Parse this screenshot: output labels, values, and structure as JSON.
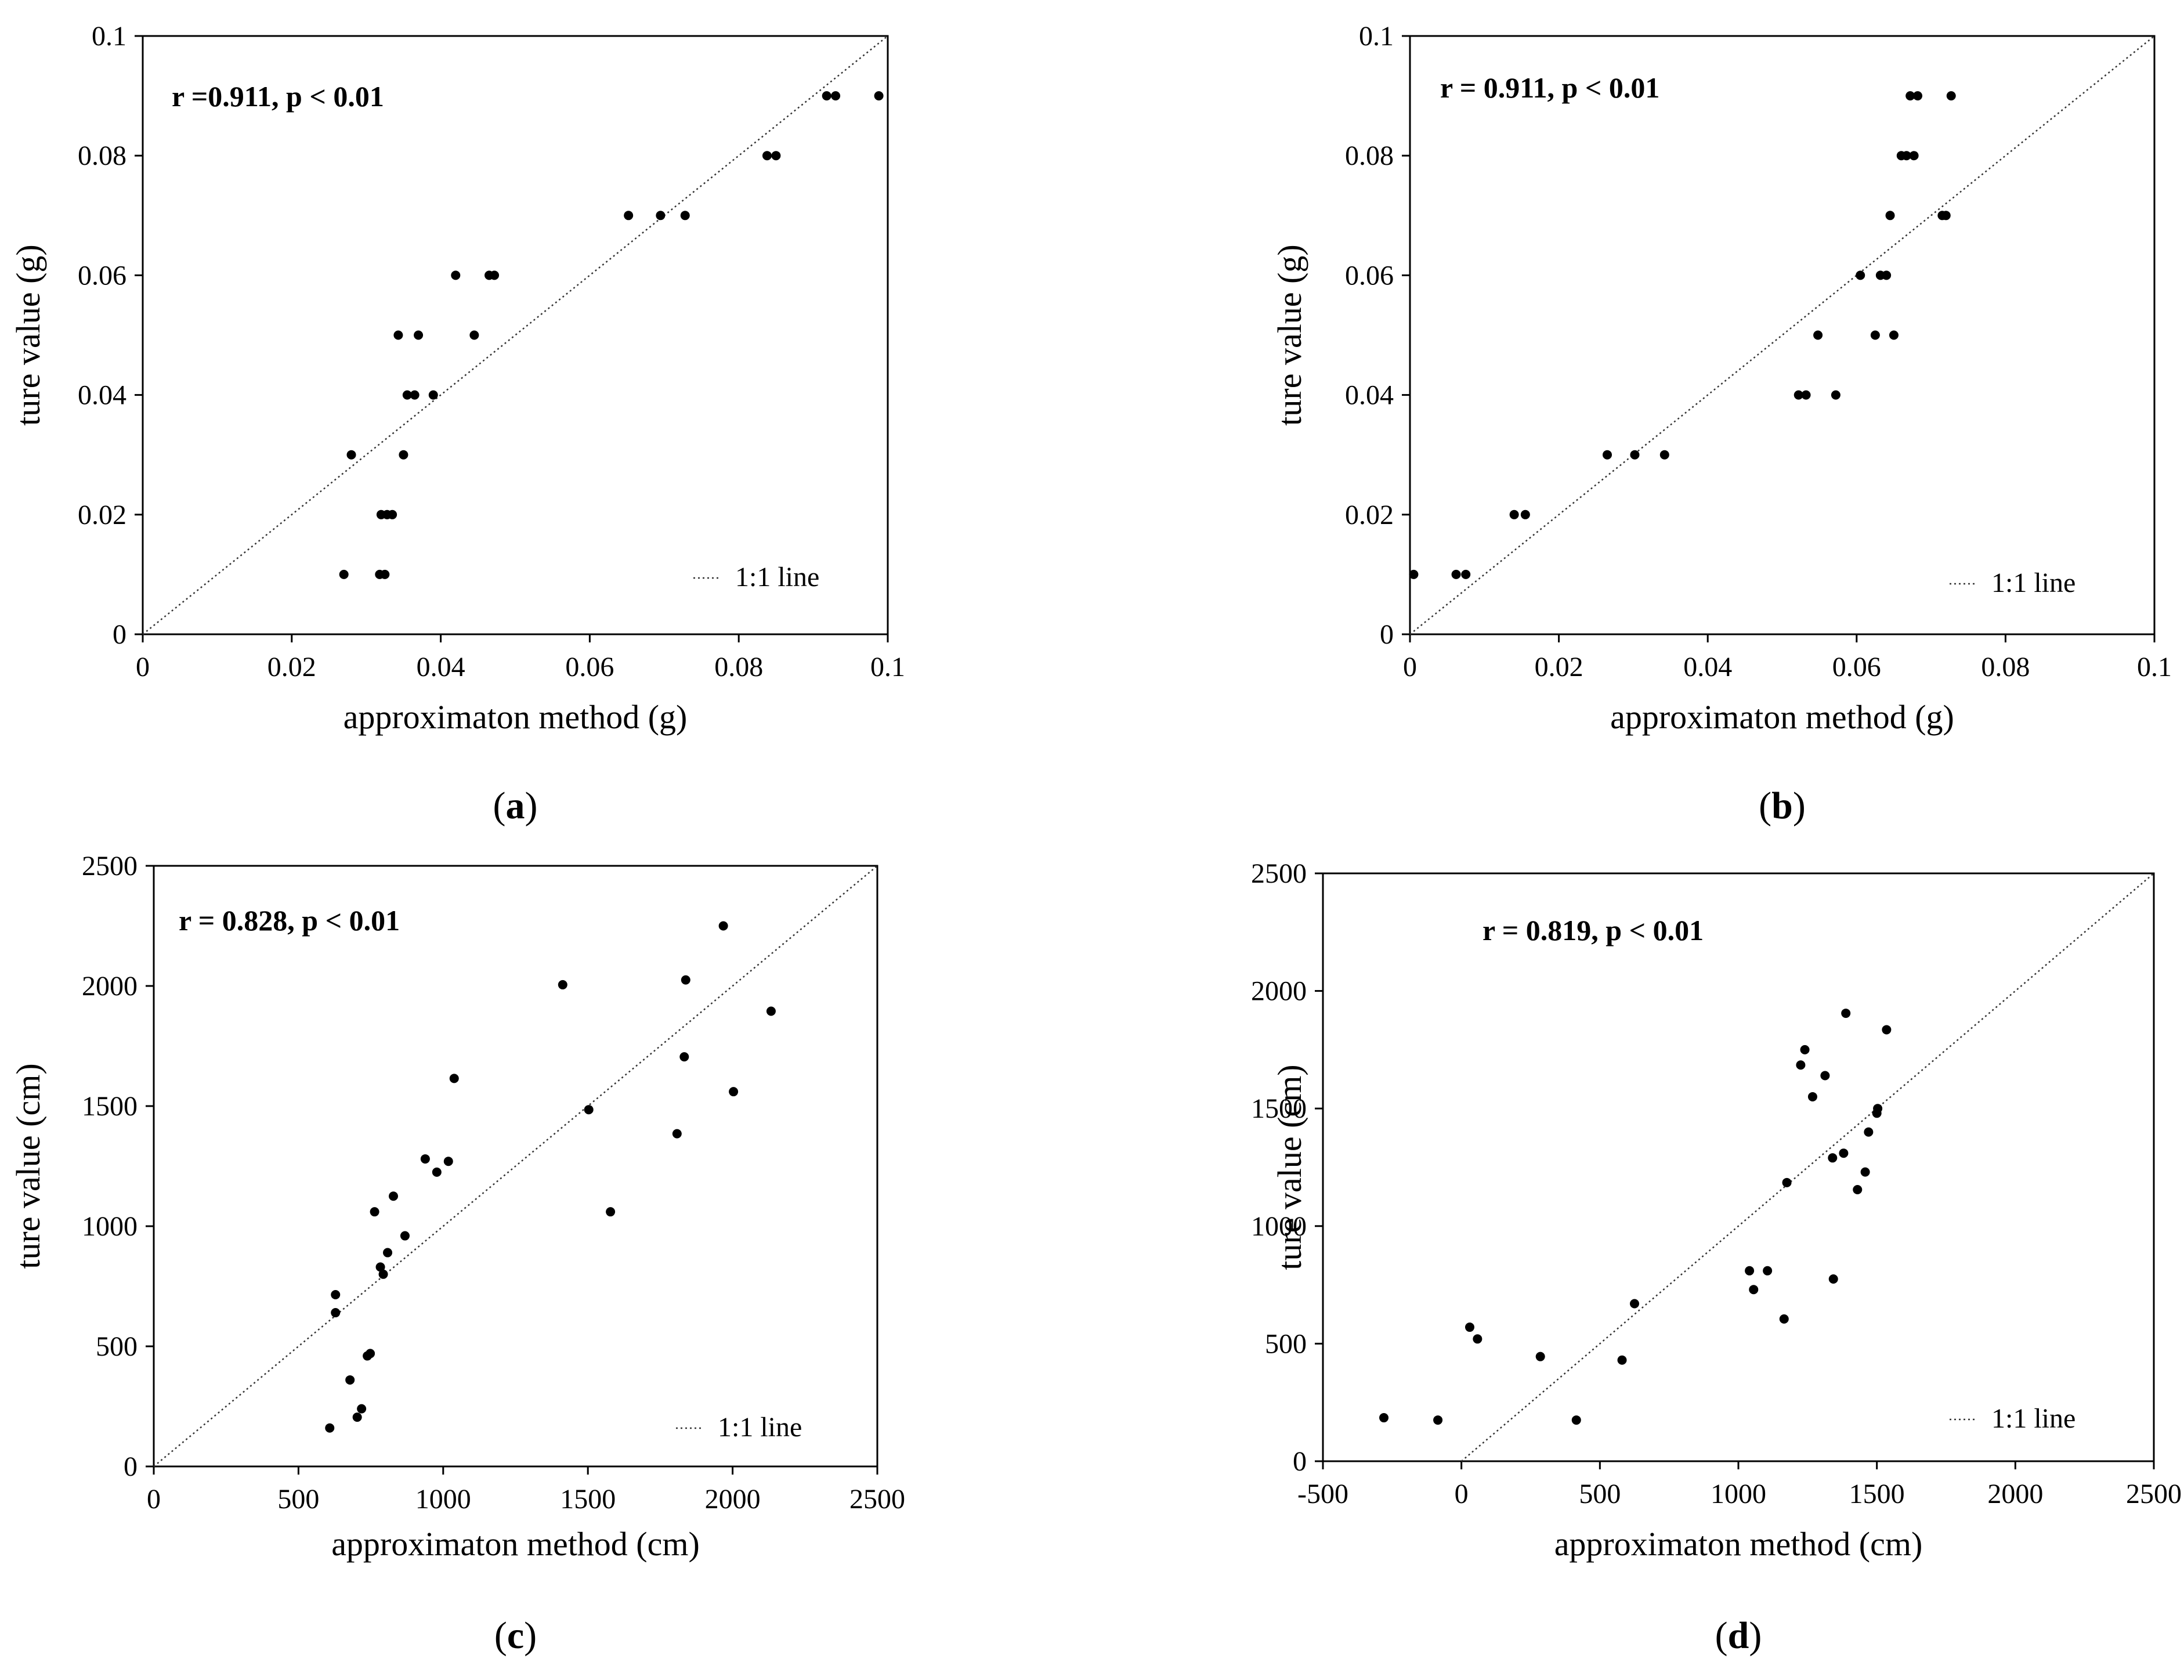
{
  "chart_data": [
    {
      "type": "scatter",
      "panel_label": "a",
      "annotation": "r =0.911, p < 0.01",
      "xlabel": "approximaton method (g)",
      "ylabel": "ture value (g)",
      "xlim": [
        0,
        0.1
      ],
      "ylim": [
        0,
        0.1
      ],
      "xticks": [
        "0",
        "0.02",
        "0.04",
        "0.06",
        "0.08",
        "0.1"
      ],
      "yticks": [
        "0",
        "0.02",
        "0.04",
        "0.06",
        "0.08",
        "0.1"
      ],
      "xtick_values": [
        0,
        0.02,
        0.04,
        0.06,
        0.08,
        0.1
      ],
      "ytick_values": [
        0,
        0.02,
        0.04,
        0.06,
        0.08,
        0.1
      ],
      "legend": "1:1 line",
      "legend_position": "bottom-right",
      "line": [
        [
          0,
          0
        ],
        [
          0.1,
          0.1
        ]
      ],
      "points": [
        [
          0.027,
          0.01
        ],
        [
          0.0318,
          0.01
        ],
        [
          0.0325,
          0.01
        ],
        [
          0.032,
          0.02
        ],
        [
          0.0328,
          0.02
        ],
        [
          0.0335,
          0.02
        ],
        [
          0.028,
          0.03
        ],
        [
          0.035,
          0.03
        ],
        [
          0.0355,
          0.04
        ],
        [
          0.0365,
          0.04
        ],
        [
          0.039,
          0.04
        ],
        [
          0.0343,
          0.05
        ],
        [
          0.037,
          0.05
        ],
        [
          0.0445,
          0.05
        ],
        [
          0.042,
          0.06
        ],
        [
          0.0465,
          0.06
        ],
        [
          0.0472,
          0.06
        ],
        [
          0.0652,
          0.07
        ],
        [
          0.0695,
          0.07
        ],
        [
          0.0728,
          0.07
        ],
        [
          0.0838,
          0.08
        ],
        [
          0.085,
          0.08
        ],
        [
          0.0918,
          0.09
        ],
        [
          0.093,
          0.09
        ],
        [
          0.0988,
          0.09
        ]
      ]
    },
    {
      "type": "scatter",
      "panel_label": "b",
      "annotation": "r = 0.911, p < 0.01",
      "xlabel": "approximaton method (g)",
      "ylabel": "ture value (g)",
      "xlim": [
        0,
        0.1
      ],
      "ylim": [
        0,
        0.1
      ],
      "xticks": [
        "0",
        "0.02",
        "0.04",
        "0.06",
        "0.08",
        "0.1"
      ],
      "yticks": [
        "0",
        "0.02",
        "0.04",
        "0.06",
        "0.08",
        "0.1"
      ],
      "xtick_values": [
        0,
        0.02,
        0.04,
        0.06,
        0.08,
        0.1
      ],
      "ytick_values": [
        0,
        0.02,
        0.04,
        0.06,
        0.08,
        0.1
      ],
      "legend": "1:1 line",
      "legend_position": "bottom-right",
      "line": [
        [
          0,
          0
        ],
        [
          0.1,
          0.1
        ]
      ],
      "points": [
        [
          0.0005,
          0.01
        ],
        [
          0.0062,
          0.01
        ],
        [
          0.0075,
          0.01
        ],
        [
          0.014,
          0.02
        ],
        [
          0.0155,
          0.02
        ],
        [
          0.0265,
          0.03
        ],
        [
          0.0302,
          0.03
        ],
        [
          0.0342,
          0.03
        ],
        [
          0.0522,
          0.04
        ],
        [
          0.0532,
          0.04
        ],
        [
          0.0572,
          0.04
        ],
        [
          0.0548,
          0.05
        ],
        [
          0.0625,
          0.05
        ],
        [
          0.065,
          0.05
        ],
        [
          0.0605,
          0.06
        ],
        [
          0.0632,
          0.06
        ],
        [
          0.064,
          0.06
        ],
        [
          0.0645,
          0.07
        ],
        [
          0.0715,
          0.07
        ],
        [
          0.072,
          0.07
        ],
        [
          0.066,
          0.08
        ],
        [
          0.0667,
          0.08
        ],
        [
          0.0677,
          0.08
        ],
        [
          0.0672,
          0.09
        ],
        [
          0.0682,
          0.09
        ],
        [
          0.0727,
          0.09
        ]
      ]
    },
    {
      "type": "scatter",
      "panel_label": "c",
      "annotation": "r = 0.828, p < 0.01",
      "xlabel": "approximaton method (cm)",
      "ylabel": "ture value (cm)",
      "xlim": [
        0,
        2500
      ],
      "ylim": [
        0,
        2500
      ],
      "xticks": [
        "0",
        "500",
        "1000",
        "1500",
        "2000",
        "2500"
      ],
      "yticks": [
        "0",
        "500",
        "1000",
        "1500",
        "2000",
        "2500"
      ],
      "xtick_values": [
        0,
        500,
        1000,
        1500,
        2000,
        2500
      ],
      "ytick_values": [
        0,
        500,
        1000,
        1500,
        2000,
        2500
      ],
      "legend": "1:1 line",
      "legend_position": "bottom-right",
      "line": [
        [
          0,
          0
        ],
        [
          2500,
          2500
        ]
      ],
      "points": [
        [
          608,
          160
        ],
        [
          703,
          205
        ],
        [
          718,
          240
        ],
        [
          678,
          360
        ],
        [
          738,
          460
        ],
        [
          748,
          470
        ],
        [
          628,
          640
        ],
        [
          628,
          715
        ],
        [
          783,
          830
        ],
        [
          793,
          800
        ],
        [
          808,
          890
        ],
        [
          868,
          960
        ],
        [
          763,
          1060
        ],
        [
          828,
          1125
        ],
        [
          938,
          1280
        ],
        [
          978,
          1225
        ],
        [
          1018,
          1270
        ],
        [
          1038,
          1615
        ],
        [
          1413,
          2005
        ],
        [
          1503,
          1485
        ],
        [
          1578,
          1060
        ],
        [
          1808,
          1385
        ],
        [
          1833,
          1705
        ],
        [
          1838,
          2025
        ],
        [
          1968,
          2250
        ],
        [
          2003,
          1560
        ],
        [
          2133,
          1895
        ]
      ]
    },
    {
      "type": "scatter",
      "panel_label": "d",
      "annotation": "r = 0.819, p < 0.01",
      "xlabel": "approximaton method (cm)",
      "ylabel": "ture value (cm)",
      "xlim": [
        -500,
        2500
      ],
      "ylim": [
        0,
        2500
      ],
      "xticks": [
        "-500",
        "0",
        "500",
        "1000",
        "1500",
        "2000",
        "2500"
      ],
      "yticks": [
        "0",
        "500",
        "1000",
        "1500",
        "2000",
        "2500"
      ],
      "xtick_values": [
        -500,
        0,
        500,
        1000,
        1500,
        2000,
        2500
      ],
      "ytick_values": [
        0,
        500,
        1000,
        1500,
        2000,
        2500
      ],
      "legend": "1:1 line",
      "legend_position": "bottom-right",
      "line": [
        [
          0,
          0
        ],
        [
          2500,
          2500
        ]
      ],
      "points": [
        [
          -280,
          185
        ],
        [
          -85,
          175
        ],
        [
          30,
          570
        ],
        [
          58,
          520
        ],
        [
          285,
          445
        ],
        [
          415,
          175
        ],
        [
          580,
          430
        ],
        [
          625,
          670
        ],
        [
          1040,
          810
        ],
        [
          1055,
          730
        ],
        [
          1105,
          810
        ],
        [
          1165,
          605
        ],
        [
          1175,
          1185
        ],
        [
          1225,
          1685
        ],
        [
          1240,
          1750
        ],
        [
          1268,
          1550
        ],
        [
          1313,
          1640
        ],
        [
          1340,
          1290
        ],
        [
          1343,
          775
        ],
        [
          1380,
          1310
        ],
        [
          1388,
          1905
        ],
        [
          1430,
          1155
        ],
        [
          1458,
          1230
        ],
        [
          1470,
          1400
        ],
        [
          1500,
          1480
        ],
        [
          1503,
          1500
        ],
        [
          1535,
          1835
        ]
      ]
    }
  ]
}
